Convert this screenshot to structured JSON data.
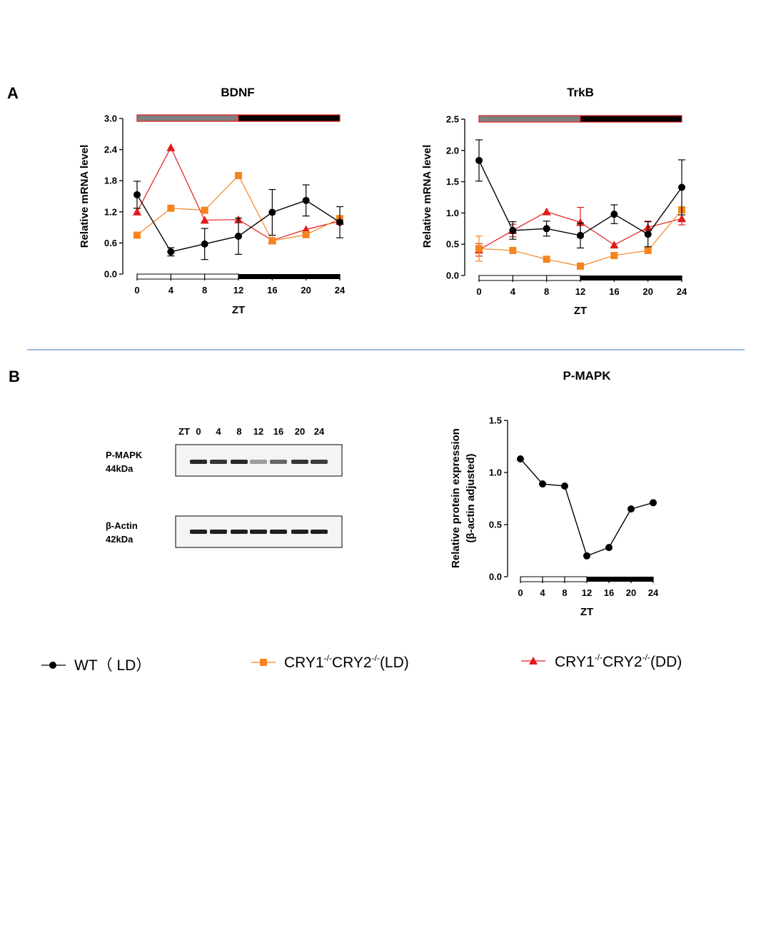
{
  "panels": {
    "a": "A",
    "b": "B"
  },
  "legend": [
    {
      "label": "WT（ LD）",
      "color": "#000000",
      "marker": "circle"
    },
    {
      "label_parts": [
        "CRY1",
        "-/-",
        "CRY2",
        "-/-",
        "(LD)"
      ],
      "color": "#f5841f",
      "marker": "square"
    },
    {
      "label_parts": [
        "CRY1",
        "-/-",
        "CRY2",
        "-/-",
        "(DD)"
      ],
      "color": "#e31a1c",
      "marker": "triangle"
    }
  ],
  "colors": {
    "wt": "#000000",
    "ld": "#f5841f",
    "dd": "#e31a1c",
    "bar_light": "#808080",
    "bar_dark": "#000000",
    "divider": "#5b8fc4"
  },
  "blot": {
    "zt_label": "ZT",
    "lanes": [
      "0",
      "4",
      "8",
      "12",
      "16",
      "20",
      "24"
    ],
    "pmapk": {
      "name": "P-MAPK",
      "size": "44kDa",
      "intensity": [
        0.9,
        0.85,
        0.9,
        0.35,
        0.6,
        0.85,
        0.8
      ]
    },
    "actin": {
      "name": "β-Actin",
      "size": "42kDa",
      "intensity": [
        0.95,
        0.95,
        0.95,
        0.95,
        0.95,
        0.95,
        0.95
      ]
    }
  },
  "chart_data": [
    {
      "id": "bdnf",
      "type": "line",
      "title": "BDNF",
      "xlabel": "ZT",
      "ylabel": "Relative mRNA level",
      "x": [
        0,
        4,
        8,
        12,
        16,
        20,
        24
      ],
      "xlim": [
        0,
        24
      ],
      "ylim": [
        0,
        3.0
      ],
      "yticks": [
        0.0,
        0.6,
        1.2,
        1.8,
        2.4,
        3.0
      ],
      "ytick_labels": [
        "0.0",
        "0.6",
        "1.2",
        "1.8",
        "2.4",
        "3.0"
      ],
      "series": [
        {
          "key": "wt",
          "values": [
            1.53,
            0.43,
            0.58,
            0.73,
            1.19,
            1.42,
            1.0
          ],
          "err": [
            0.26,
            0.08,
            0.3,
            0.35,
            0.44,
            0.3,
            0.3
          ]
        },
        {
          "key": "ld",
          "values": [
            0.75,
            1.27,
            1.23,
            1.9,
            0.64,
            0.76,
            1.07
          ],
          "err": [
            0,
            0,
            0,
            0,
            0,
            0,
            0
          ]
        },
        {
          "key": "dd",
          "values": [
            1.2,
            2.44,
            1.04,
            1.05,
            0.65,
            0.86,
            1.02
          ],
          "err": [
            0,
            0,
            0,
            0,
            0,
            0,
            0
          ]
        }
      ]
    },
    {
      "id": "trkb",
      "type": "line",
      "title": "TrkB",
      "xlabel": "ZT",
      "ylabel": "Relative mRNA level",
      "x": [
        0,
        4,
        8,
        12,
        16,
        20,
        24
      ],
      "xlim": [
        0,
        24
      ],
      "ylim": [
        0,
        2.5
      ],
      "yticks": [
        0.0,
        0.5,
        1.0,
        1.5,
        2.0,
        2.5
      ],
      "ytick_labels": [
        "0.0",
        "0.5",
        "1.0",
        "1.5",
        "2.0",
        "2.5"
      ],
      "series": [
        {
          "key": "wt",
          "values": [
            1.84,
            0.72,
            0.75,
            0.64,
            0.98,
            0.66,
            1.41
          ],
          "err": [
            0.33,
            0.14,
            0.12,
            0.2,
            0.15,
            0.2,
            0.44
          ]
        },
        {
          "key": "ld",
          "values": [
            0.43,
            0.4,
            0.26,
            0.15,
            0.32,
            0.4,
            1.05
          ],
          "err": [
            0.2,
            0,
            0,
            0,
            0.05,
            0,
            0
          ]
        },
        {
          "key": "dd",
          "values": [
            0.41,
            0.72,
            1.02,
            0.85,
            0.49,
            0.77,
            0.91
          ],
          "err": [
            0.1,
            0.1,
            0,
            0.24,
            0,
            0.1,
            0.1
          ]
        }
      ]
    },
    {
      "id": "pmapk",
      "type": "line",
      "title": "P-MAPK",
      "xlabel": "ZT",
      "ylabel": "Relative protein expression",
      "ylabel2": "(β-actin adjusted)",
      "x": [
        0,
        4,
        8,
        12,
        16,
        20,
        24
      ],
      "xlim": [
        0,
        24
      ],
      "ylim": [
        0,
        1.5
      ],
      "yticks": [
        0.0,
        0.5,
        1.0,
        1.5
      ],
      "ytick_labels": [
        "0.0",
        "0.5",
        "1.0",
        "1.5"
      ],
      "series": [
        {
          "key": "wt",
          "values": [
            1.13,
            0.89,
            0.87,
            0.2,
            0.28,
            0.65,
            0.71
          ],
          "err": [
            0,
            0,
            0,
            0,
            0,
            0,
            0
          ]
        }
      ]
    }
  ]
}
